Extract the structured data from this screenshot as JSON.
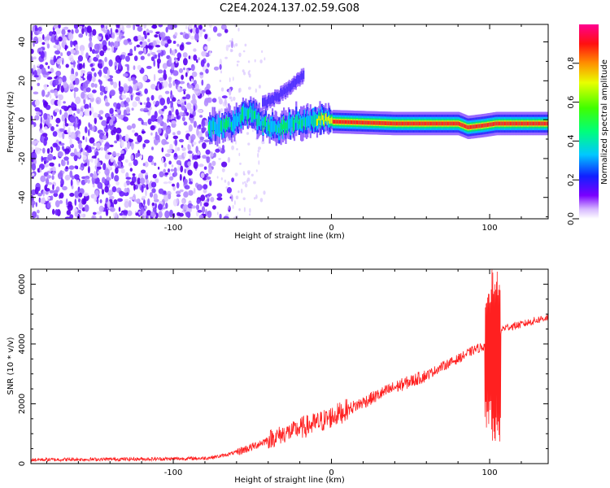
{
  "figure_title": "C2E4.2024.137.02.59.G08",
  "colorbar": {
    "label": "Normalized spectral amplitude",
    "ticks": [
      "0.0",
      "0.2",
      "0.4",
      "0.6",
      "0.8"
    ]
  },
  "chart_data": [
    {
      "type": "heatmap",
      "title": "",
      "xlabel": "Height of straight line (km)",
      "ylabel": "Frequency (Hz)",
      "xlim": [
        -190,
        137
      ],
      "ylim": [
        -51,
        49
      ],
      "xticks": [
        -100,
        0,
        100
      ],
      "yticks": [
        -40,
        -20,
        0,
        20,
        40
      ],
      "xtick_labels": [
        "-100",
        "0",
        "100"
      ],
      "ytick_labels": [
        "-40",
        "-20",
        "0",
        "20",
        "40"
      ],
      "zlim": [
        0.0,
        1.0
      ],
      "colormap": "rainbow (white/violet -> blue -> cyan -> green -> yellow -> red -> magenta)",
      "features": {
        "noise_region_x": [
          -190,
          -72
        ],
        "signal_track": [
          {
            "x": -78,
            "y": -4
          },
          {
            "x": -68,
            "y": -4
          },
          {
            "x": -60,
            "y": 0
          },
          {
            "x": -52,
            "y": 4
          },
          {
            "x": -44,
            "y": -2
          },
          {
            "x": -36,
            "y": -4
          },
          {
            "x": -20,
            "y": -1
          },
          {
            "x": -8,
            "y": 0
          },
          {
            "x": 0,
            "y": -1
          },
          {
            "x": 40,
            "y": -2
          },
          {
            "x": 80,
            "y": -2
          },
          {
            "x": 86,
            "y": -4
          },
          {
            "x": 96,
            "y": -3
          },
          {
            "x": 104,
            "y": -2
          },
          {
            "x": 137,
            "y": -2
          }
        ],
        "rising_branch": [
          {
            "x": -44,
            "y": 8
          },
          {
            "x": -34,
            "y": 12
          },
          {
            "x": -26,
            "y": 17
          },
          {
            "x": -18,
            "y": 23
          }
        ]
      }
    },
    {
      "type": "line",
      "title": "",
      "xlabel": "Height of straight line (km)",
      "ylabel": "SNR (10 * v/v)",
      "xlim": [
        -190,
        137
      ],
      "ylim": [
        0,
        6500
      ],
      "xticks": [
        -100,
        0,
        100
      ],
      "yticks": [
        0,
        2000,
        4000,
        6000
      ],
      "xtick_labels": [
        "-100",
        "0",
        "100"
      ],
      "ytick_labels": [
        "0",
        "2000",
        "4000",
        "6000"
      ],
      "series_color": "#ff2020",
      "series": [
        {
          "name": "",
          "x": [
            -190,
            -160,
            -130,
            -100,
            -80,
            -70,
            -60,
            -50,
            -45,
            -40,
            -35,
            -30,
            -25,
            -20,
            -15,
            -10,
            -5,
            0,
            10,
            20,
            30,
            40,
            50,
            60,
            70,
            80,
            90,
            95,
            100,
            102,
            104,
            106,
            108,
            110,
            120,
            130,
            137
          ],
          "y": [
            130,
            140,
            150,
            160,
            180,
            250,
            380,
            560,
            680,
            800,
            900,
            1000,
            1080,
            1180,
            1260,
            1340,
            1440,
            1560,
            1800,
            2050,
            2300,
            2550,
            2750,
            2950,
            3250,
            3500,
            3800,
            3900,
            4000,
            4000,
            4000,
            4300,
            4500,
            4550,
            4650,
            4800,
            4900
          ],
          "spikes": [
            {
              "x": 100,
              "max": 5800,
              "min": 1200
            },
            {
              "x": 104,
              "max": 6500,
              "min": 650
            }
          ]
        }
      ]
    }
  ]
}
